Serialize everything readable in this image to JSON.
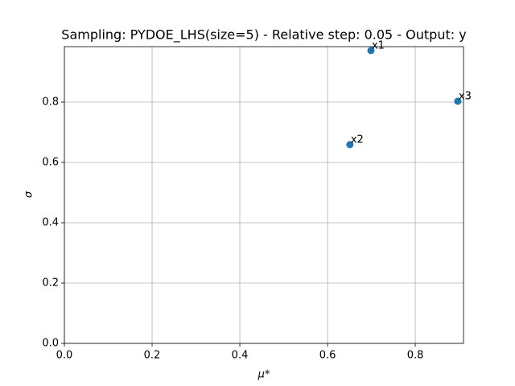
{
  "chart_data": {
    "type": "scatter",
    "title": "Sampling: PYDOE_LHS(size=5) - Relative step: 0.05 - Output: y",
    "x_label": "μ*",
    "y_label": "σ",
    "series": [
      {
        "color": "#1f77b4",
        "labels": [
          "x1",
          "x2",
          "x3"
        ],
        "x": [
          0.699,
          0.651,
          0.897
        ],
        "values": [
          0.971,
          0.659,
          0.803
        ]
      }
    ],
    "xlim": [
      0,
      0.91
    ],
    "ylim": [
      0,
      0.984
    ],
    "xticks": [
      {
        "value": 0,
        "label": "0.0"
      },
      {
        "value": 0.2,
        "label": "0.2"
      },
      {
        "value": 0.4,
        "label": "0.4"
      },
      {
        "value": 0.6,
        "label": "0.6"
      },
      {
        "value": 0.8,
        "label": "0.8"
      }
    ],
    "yticks": [
      {
        "value": 0,
        "label": "0.0"
      },
      {
        "value": 0.2,
        "label": "0.2"
      },
      {
        "value": 0.4,
        "label": "0.4"
      },
      {
        "value": 0.6,
        "label": "0.6"
      },
      {
        "value": 0.8,
        "label": "0.8"
      }
    ],
    "grid": true
  }
}
